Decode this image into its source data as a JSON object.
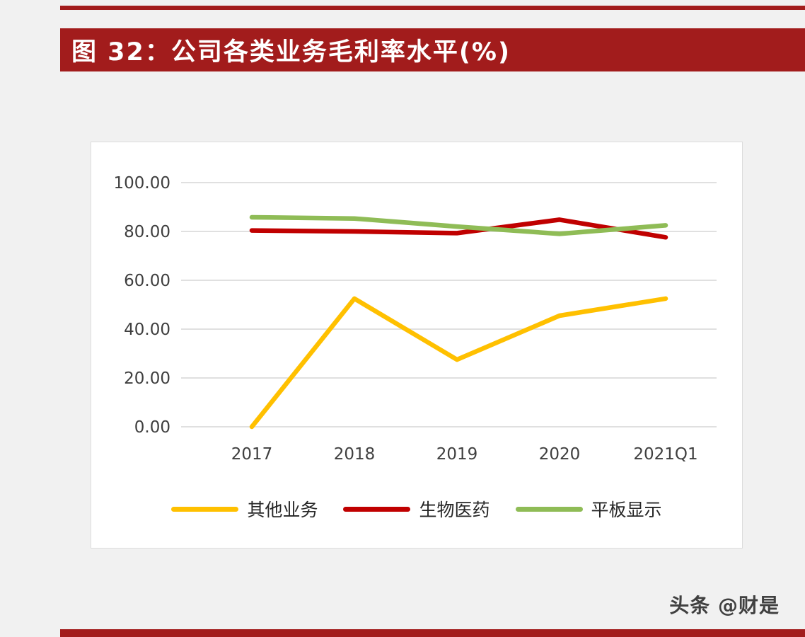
{
  "header": {
    "title": "图 32：公司各类业务毛利率水平(%)"
  },
  "footer": {
    "watermark": "头条 @财是"
  },
  "colors": {
    "banner_red": "#A21C1C",
    "page_background": "#F1F1F1",
    "panel_background": "#FFFFFF",
    "grid_gray": "#D6D6D6",
    "tick_text": "#3F3F3F"
  },
  "chart_data": {
    "type": "line",
    "title": "图 32：公司各类业务毛利率水平(%)",
    "categories": [
      "2017",
      "2018",
      "2019",
      "2020",
      "2021Q1"
    ],
    "series": [
      {
        "name": "其他业务",
        "color": "#FFC000",
        "values": [
          0.0,
          52.5,
          27.5,
          45.5,
          52.5
        ]
      },
      {
        "name": "生物医药",
        "color": "#C00000",
        "values": [
          80.4,
          80.0,
          79.3,
          84.8,
          77.6
        ]
      },
      {
        "name": "平板显示",
        "color": "#8FBC56",
        "values": [
          85.8,
          85.3,
          82.0,
          79.0,
          82.5
        ]
      }
    ],
    "ylim": [
      0,
      100
    ],
    "y_ticks": [
      "100.00",
      "80.00",
      "60.00",
      "40.00",
      "20.00",
      "0.00"
    ],
    "xlabel": "",
    "ylabel": "",
    "grid": true,
    "legend_position": "bottom"
  }
}
